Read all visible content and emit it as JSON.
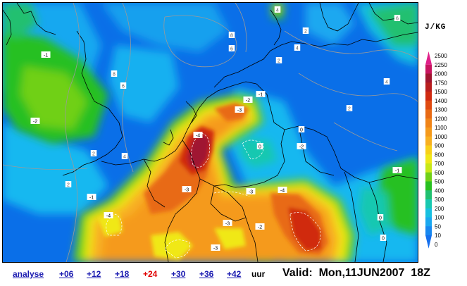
{
  "map": {
    "unit_label": "J/KG",
    "legend_levels": [
      "2500",
      "2250",
      "2000",
      "1750",
      "1500",
      "1400",
      "1300",
      "1200",
      "1100",
      "1000",
      "900",
      "800",
      "700",
      "600",
      "500",
      "400",
      "300",
      "200",
      "100",
      "50",
      "10",
      "0"
    ],
    "legend_colors": [
      "#e0208a",
      "#c81560",
      "#a01530",
      "#b81e1e",
      "#d02a10",
      "#e04a10",
      "#e86a14",
      "#f08418",
      "#f59a1c",
      "#f8b020",
      "#f8d018",
      "#f0e818",
      "#c8e818",
      "#70d018",
      "#28c020",
      "#20c070",
      "#18c8b0",
      "#18c0e0",
      "#1aa8f0",
      "#1888f0",
      "#1670ee"
    ],
    "contour_labels": [
      {
        "text": "-1",
        "dark": false
      },
      {
        "text": "-1",
        "dark": false
      },
      {
        "text": "-2",
        "dark": false
      },
      {
        "text": "-2",
        "dark": false
      },
      {
        "text": "-3",
        "dark": false
      },
      {
        "text": "-4",
        "dark": false
      },
      {
        "text": "-1",
        "dark": false
      },
      {
        "text": "0",
        "dark": false
      },
      {
        "text": "-2",
        "dark": false
      },
      {
        "text": "-3",
        "dark": false
      },
      {
        "text": "-4",
        "dark": false
      },
      {
        "text": "-3",
        "dark": false
      },
      {
        "text": "-4",
        "dark": false
      },
      {
        "text": "-3",
        "dark": false
      },
      {
        "text": "-2",
        "dark": false
      },
      {
        "text": "-3",
        "dark": false
      },
      {
        "text": "-1",
        "dark": false
      },
      {
        "text": "0",
        "dark": false
      },
      {
        "text": "0",
        "dark": false
      },
      {
        "text": "-1",
        "dark": false
      },
      {
        "text": "0",
        "dark": false
      },
      {
        "text": "2",
        "dark": true
      },
      {
        "text": "2",
        "dark": true
      },
      {
        "text": "4",
        "dark": true
      },
      {
        "text": "8",
        "dark": true
      },
      {
        "text": "6",
        "dark": true
      },
      {
        "text": "8",
        "dark": true
      },
      {
        "text": "6",
        "dark": true
      },
      {
        "text": "2",
        "dark": true
      },
      {
        "text": "2",
        "dark": true
      },
      {
        "text": "4",
        "dark": true
      },
      {
        "text": "2",
        "dark": true
      },
      {
        "text": "4",
        "dark": true
      },
      {
        "text": "4",
        "dark": true
      },
      {
        "text": "6",
        "dark": true
      }
    ]
  },
  "footer": {
    "links": [
      {
        "label": "analyse",
        "active": false
      },
      {
        "label": "+06",
        "active": false
      },
      {
        "label": "+12",
        "active": false
      },
      {
        "label": "+18",
        "active": false
      },
      {
        "label": "+24",
        "active": true
      },
      {
        "label": "+30",
        "active": false
      },
      {
        "label": "+36",
        "active": false
      },
      {
        "label": "+42",
        "active": false
      }
    ],
    "unit": "uur",
    "valid": "Valid:  Mon,11JUN2007  18Z"
  }
}
